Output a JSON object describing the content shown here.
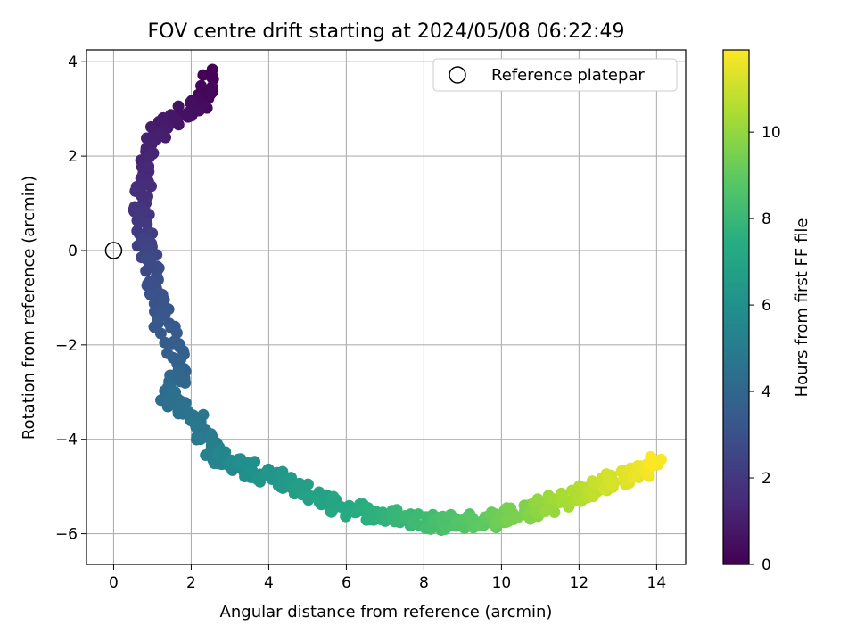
{
  "chart_data": {
    "type": "scatter",
    "title": "FOV centre drift starting at 2024/05/08 06:22:49",
    "xlabel": "Angular distance from reference (arcmin)",
    "ylabel": "Rotation from reference (arcmin)",
    "xlim": [
      -0.7,
      14.75
    ],
    "ylim": [
      -6.65,
      4.25
    ],
    "xticks": [
      "0",
      "2",
      "4",
      "6",
      "8",
      "10",
      "12",
      "14"
    ],
    "yticks": [
      "−6",
      "−4",
      "−2",
      "0",
      "2",
      "4"
    ],
    "xtick_values": [
      0,
      2,
      4,
      6,
      8,
      10,
      12,
      14
    ],
    "ytick_values": [
      -6,
      -4,
      -2,
      0,
      2,
      4
    ],
    "grid": true,
    "legend": {
      "position": "top-right",
      "entries": [
        {
          "label": "Reference platepar",
          "marker": "open-circle"
        }
      ]
    },
    "reference_point": {
      "x": 0,
      "y": 0
    },
    "colorbar": {
      "label": "Hours from first FF file",
      "range": [
        0,
        11.9
      ],
      "ticks": [
        "0",
        "2",
        "4",
        "6",
        "8",
        "10"
      ],
      "tick_values": [
        0,
        2,
        4,
        6,
        8,
        10
      ],
      "colormap": "viridis"
    },
    "path_keypoints": [
      {
        "h": 0.0,
        "x": 2.5,
        "y": 3.7
      },
      {
        "h": 0.3,
        "x": 2.3,
        "y": 3.15
      },
      {
        "h": 0.6,
        "x": 1.7,
        "y": 2.9
      },
      {
        "h": 0.9,
        "x": 1.2,
        "y": 2.6
      },
      {
        "h": 1.3,
        "x": 0.85,
        "y": 1.8
      },
      {
        "h": 1.7,
        "x": 0.7,
        "y": 1.0
      },
      {
        "h": 2.2,
        "x": 0.8,
        "y": 0.2
      },
      {
        "h": 2.7,
        "x": 1.0,
        "y": -0.4
      },
      {
        "h": 3.3,
        "x": 1.25,
        "y": -1.5
      },
      {
        "h": 3.8,
        "x": 1.8,
        "y": -2.5
      },
      {
        "h": 4.3,
        "x": 1.4,
        "y": -3.1
      },
      {
        "h": 4.7,
        "x": 2.2,
        "y": -3.7
      },
      {
        "h": 5.2,
        "x": 2.6,
        "y": -4.3
      },
      {
        "h": 5.8,
        "x": 3.3,
        "y": -4.6
      },
      {
        "h": 6.4,
        "x": 4.3,
        "y": -4.9
      },
      {
        "h": 7.0,
        "x": 5.5,
        "y": -5.35
      },
      {
        "h": 7.6,
        "x": 6.8,
        "y": -5.6
      },
      {
        "h": 8.3,
        "x": 8.3,
        "y": -5.75
      },
      {
        "h": 9.1,
        "x": 9.8,
        "y": -5.7
      },
      {
        "h": 9.9,
        "x": 11.0,
        "y": -5.45
      },
      {
        "h": 10.7,
        "x": 12.3,
        "y": -5.1
      },
      {
        "h": 11.9,
        "x": 14.0,
        "y": -4.5
      }
    ]
  }
}
